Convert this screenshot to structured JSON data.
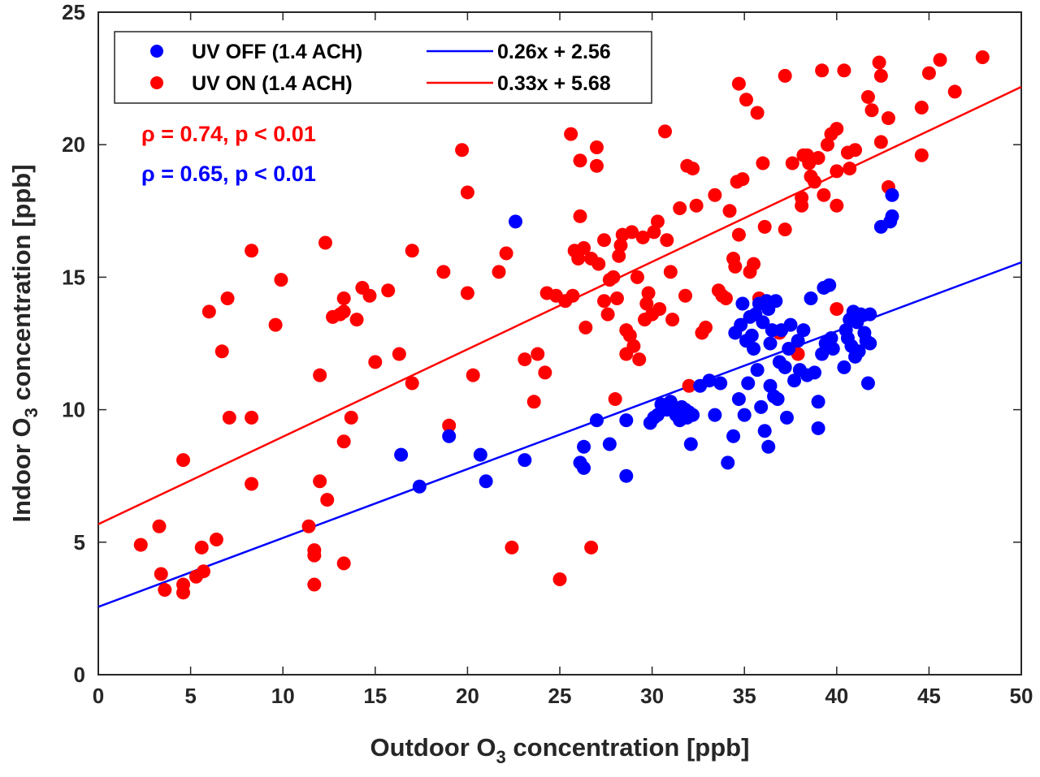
{
  "chart_data": {
    "type": "scatter",
    "xlabel": {
      "pre": "Outdoor O",
      "sub": "3",
      "post": " concentration [ppb]"
    },
    "ylabel": {
      "pre": "Indoor O",
      "sub": "3",
      "post": " concentration [ppb]"
    },
    "xlim": [
      0,
      50
    ],
    "ylim": [
      0,
      25
    ],
    "xticks": [
      0,
      5,
      10,
      15,
      20,
      25,
      30,
      35,
      40,
      45,
      50
    ],
    "yticks": [
      0,
      5,
      10,
      15,
      20,
      25
    ],
    "grid": false,
    "legend_position": "top-left",
    "series": [
      {
        "name": "UV OFF (1.4 ACH)",
        "color": "#0000ff",
        "fit_label": "0.26x + 2.56",
        "fit": {
          "slope": 0.26,
          "intercept": 2.56
        },
        "points": [
          [
            16.4,
            8.3
          ],
          [
            17.4,
            7.1
          ],
          [
            19.0,
            9.0
          ],
          [
            20.7,
            8.3
          ],
          [
            21.0,
            7.3
          ],
          [
            22.6,
            17.1
          ],
          [
            23.1,
            8.1
          ],
          [
            26.1,
            8.0
          ],
          [
            26.3,
            7.8
          ],
          [
            26.3,
            8.6
          ],
          [
            27.0,
            9.6
          ],
          [
            27.7,
            8.7
          ],
          [
            28.6,
            9.6
          ],
          [
            28.6,
            7.5
          ],
          [
            29.9,
            9.5
          ],
          [
            30.1,
            9.7
          ],
          [
            30.3,
            9.8
          ],
          [
            30.5,
            10.2
          ],
          [
            30.8,
            10.0
          ],
          [
            31.0,
            10.3
          ],
          [
            31.1,
            10.0
          ],
          [
            31.3,
            9.8
          ],
          [
            31.5,
            9.6
          ],
          [
            31.6,
            10.1
          ],
          [
            31.8,
            10.0
          ],
          [
            31.9,
            9.7
          ],
          [
            32.0,
            9.9
          ],
          [
            32.1,
            8.7
          ],
          [
            32.2,
            9.8
          ],
          [
            32.6,
            10.9
          ],
          [
            33.1,
            11.1
          ],
          [
            33.4,
            9.8
          ],
          [
            33.7,
            11.0
          ],
          [
            34.1,
            8.0
          ],
          [
            34.4,
            9.0
          ],
          [
            34.5,
            12.9
          ],
          [
            34.7,
            10.4
          ],
          [
            34.8,
            13.2
          ],
          [
            34.9,
            14.0
          ],
          [
            35.0,
            9.8
          ],
          [
            35.1,
            12.6
          ],
          [
            35.2,
            11.0
          ],
          [
            35.3,
            13.5
          ],
          [
            35.4,
            12.8
          ],
          [
            35.5,
            12.3
          ],
          [
            35.6,
            13.6
          ],
          [
            35.7,
            11.5
          ],
          [
            35.8,
            14.0
          ],
          [
            35.9,
            10.1
          ],
          [
            36.0,
            13.3
          ],
          [
            36.1,
            9.2
          ],
          [
            36.2,
            14.1
          ],
          [
            36.3,
            13.8
          ],
          [
            36.3,
            8.6
          ],
          [
            36.4,
            12.5
          ],
          [
            36.4,
            10.9
          ],
          [
            36.5,
            13.0
          ],
          [
            36.6,
            10.5
          ],
          [
            36.7,
            14.1
          ],
          [
            36.8,
            10.4
          ],
          [
            36.9,
            11.8
          ],
          [
            37.0,
            13.0
          ],
          [
            37.2,
            11.6
          ],
          [
            37.3,
            9.7
          ],
          [
            37.4,
            12.3
          ],
          [
            37.5,
            13.2
          ],
          [
            37.7,
            11.1
          ],
          [
            37.9,
            12.6
          ],
          [
            38.0,
            11.5
          ],
          [
            38.2,
            13.0
          ],
          [
            38.4,
            11.3
          ],
          [
            38.6,
            14.2
          ],
          [
            38.8,
            11.4
          ],
          [
            39.0,
            10.3
          ],
          [
            39.0,
            9.3
          ],
          [
            39.2,
            12.1
          ],
          [
            39.3,
            14.6
          ],
          [
            39.4,
            12.5
          ],
          [
            39.6,
            14.7
          ],
          [
            39.7,
            12.7
          ],
          [
            39.8,
            12.3
          ],
          [
            40.4,
            11.6
          ],
          [
            40.5,
            13.0
          ],
          [
            40.6,
            12.7
          ],
          [
            40.7,
            13.4
          ],
          [
            40.8,
            12.4
          ],
          [
            40.9,
            13.7
          ],
          [
            41.0,
            12.0
          ],
          [
            41.1,
            13.3
          ],
          [
            41.2,
            12.2
          ],
          [
            41.3,
            13.6
          ],
          [
            41.5,
            12.9
          ],
          [
            41.6,
            12.6
          ],
          [
            41.7,
            11.0
          ],
          [
            41.8,
            13.6
          ],
          [
            41.8,
            12.5
          ],
          [
            42.4,
            16.9
          ],
          [
            42.9,
            17.1
          ],
          [
            43.0,
            17.3
          ],
          [
            43.0,
            18.1
          ]
        ]
      },
      {
        "name": "UV ON (1.4 ACH)",
        "color": "#ff0000",
        "fit_label": "0.33x + 5.68",
        "fit": {
          "slope": 0.33,
          "intercept": 5.68
        },
        "points": [
          [
            2.3,
            4.9
          ],
          [
            3.3,
            5.6
          ],
          [
            3.4,
            3.8
          ],
          [
            3.6,
            3.2
          ],
          [
            4.6,
            8.1
          ],
          [
            4.6,
            3.4
          ],
          [
            4.6,
            3.1
          ],
          [
            5.3,
            3.7
          ],
          [
            5.6,
            4.8
          ],
          [
            5.7,
            3.9
          ],
          [
            6.0,
            13.7
          ],
          [
            6.4,
            5.1
          ],
          [
            6.7,
            12.2
          ],
          [
            7.0,
            14.2
          ],
          [
            7.1,
            9.7
          ],
          [
            8.3,
            16.0
          ],
          [
            8.3,
            9.7
          ],
          [
            8.3,
            7.2
          ],
          [
            9.6,
            13.2
          ],
          [
            9.9,
            14.9
          ],
          [
            11.4,
            5.6
          ],
          [
            11.7,
            4.7
          ],
          [
            11.7,
            4.5
          ],
          [
            11.7,
            3.4
          ],
          [
            12.0,
            11.3
          ],
          [
            12.0,
            7.3
          ],
          [
            12.3,
            16.3
          ],
          [
            12.4,
            6.6
          ],
          [
            12.7,
            13.5
          ],
          [
            13.1,
            13.6
          ],
          [
            13.3,
            14.2
          ],
          [
            13.3,
            13.7
          ],
          [
            13.3,
            8.8
          ],
          [
            13.3,
            4.2
          ],
          [
            13.7,
            9.7
          ],
          [
            14.0,
            13.4
          ],
          [
            14.3,
            14.6
          ],
          [
            14.7,
            14.3
          ],
          [
            15.0,
            11.8
          ],
          [
            15.7,
            14.5
          ],
          [
            16.3,
            12.1
          ],
          [
            17.0,
            16.0
          ],
          [
            17.0,
            11.0
          ],
          [
            18.7,
            15.2
          ],
          [
            19.0,
            9.4
          ],
          [
            19.7,
            19.8
          ],
          [
            20.0,
            18.2
          ],
          [
            20.0,
            14.4
          ],
          [
            20.3,
            11.3
          ],
          [
            21.7,
            15.2
          ],
          [
            22.1,
            15.9
          ],
          [
            22.4,
            4.8
          ],
          [
            23.1,
            11.9
          ],
          [
            23.6,
            10.3
          ],
          [
            23.8,
            12.1
          ],
          [
            24.2,
            11.4
          ],
          [
            24.3,
            14.4
          ],
          [
            24.8,
            14.3
          ],
          [
            25.0,
            3.6
          ],
          [
            25.3,
            14.1
          ],
          [
            25.6,
            20.4
          ],
          [
            25.7,
            14.3
          ],
          [
            25.8,
            16.0
          ],
          [
            26.0,
            15.7
          ],
          [
            26.1,
            17.3
          ],
          [
            26.1,
            19.4
          ],
          [
            26.3,
            16.1
          ],
          [
            26.4,
            13.1
          ],
          [
            26.7,
            15.7
          ],
          [
            26.7,
            4.8
          ],
          [
            27.0,
            19.9
          ],
          [
            27.0,
            19.2
          ],
          [
            27.1,
            15.5
          ],
          [
            27.4,
            16.4
          ],
          [
            27.4,
            14.1
          ],
          [
            27.6,
            13.6
          ],
          [
            27.7,
            14.9
          ],
          [
            27.9,
            15.0
          ],
          [
            28.0,
            10.4
          ],
          [
            28.1,
            14.2
          ],
          [
            28.2,
            15.8
          ],
          [
            28.3,
            16.2
          ],
          [
            28.4,
            16.6
          ],
          [
            28.6,
            13.0
          ],
          [
            28.6,
            12.1
          ],
          [
            28.8,
            12.8
          ],
          [
            28.9,
            16.7
          ],
          [
            29.0,
            12.4
          ],
          [
            29.2,
            15.0
          ],
          [
            29.3,
            11.9
          ],
          [
            29.5,
            16.5
          ],
          [
            29.6,
            13.4
          ],
          [
            29.7,
            14.0
          ],
          [
            29.8,
            14.4
          ],
          [
            30.0,
            13.6
          ],
          [
            30.1,
            16.7
          ],
          [
            30.3,
            17.1
          ],
          [
            30.4,
            13.8
          ],
          [
            30.7,
            20.5
          ],
          [
            30.8,
            16.4
          ],
          [
            31.0,
            15.2
          ],
          [
            31.1,
            13.4
          ],
          [
            31.5,
            17.6
          ],
          [
            31.8,
            14.3
          ],
          [
            31.9,
            19.2
          ],
          [
            32.0,
            10.9
          ],
          [
            32.2,
            19.1
          ],
          [
            32.4,
            17.7
          ],
          [
            32.7,
            12.9
          ],
          [
            32.9,
            13.1
          ],
          [
            33.4,
            18.1
          ],
          [
            33.6,
            14.5
          ],
          [
            33.8,
            14.3
          ],
          [
            34.0,
            14.2
          ],
          [
            34.2,
            17.5
          ],
          [
            34.4,
            15.7
          ],
          [
            34.5,
            15.4
          ],
          [
            34.6,
            18.6
          ],
          [
            34.7,
            22.3
          ],
          [
            34.7,
            16.6
          ],
          [
            34.9,
            18.7
          ],
          [
            35.1,
            21.7
          ],
          [
            35.3,
            15.2
          ],
          [
            35.5,
            15.5
          ],
          [
            35.7,
            21.2
          ],
          [
            35.8,
            14.2
          ],
          [
            36.0,
            19.3
          ],
          [
            36.1,
            16.9
          ],
          [
            36.9,
            12.9
          ],
          [
            37.2,
            22.6
          ],
          [
            37.2,
            16.8
          ],
          [
            37.6,
            19.3
          ],
          [
            37.9,
            12.1
          ],
          [
            38.1,
            18.0
          ],
          [
            38.1,
            17.7
          ],
          [
            38.2,
            19.6
          ],
          [
            38.4,
            19.6
          ],
          [
            38.5,
            19.3
          ],
          [
            38.6,
            18.8
          ],
          [
            38.8,
            18.6
          ],
          [
            39.0,
            19.5
          ],
          [
            39.2,
            22.8
          ],
          [
            39.3,
            18.1
          ],
          [
            39.5,
            20.0
          ],
          [
            39.7,
            20.4
          ],
          [
            40.0,
            20.6
          ],
          [
            40.0,
            19.0
          ],
          [
            40.0,
            17.7
          ],
          [
            40.0,
            13.8
          ],
          [
            40.4,
            22.8
          ],
          [
            40.6,
            19.7
          ],
          [
            40.7,
            19.1
          ],
          [
            41.0,
            19.8
          ],
          [
            41.7,
            21.8
          ],
          [
            41.9,
            21.3
          ],
          [
            42.3,
            23.1
          ],
          [
            42.4,
            22.6
          ],
          [
            42.4,
            20.1
          ],
          [
            42.8,
            21.0
          ],
          [
            42.8,
            18.4
          ],
          [
            44.6,
            21.4
          ],
          [
            44.6,
            19.6
          ],
          [
            45.0,
            22.7
          ],
          [
            45.6,
            23.2
          ],
          [
            46.4,
            22.0
          ],
          [
            47.9,
            23.3
          ]
        ]
      }
    ],
    "annotations": [
      {
        "text": "ρ = 0.74, p < 0.01",
        "color": "#ff0000"
      },
      {
        "text": "ρ = 0.65, p < 0.01",
        "color": "#0000ff"
      }
    ]
  }
}
